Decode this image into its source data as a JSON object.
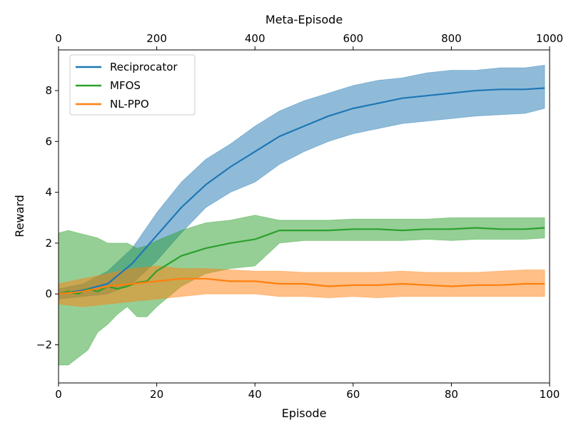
{
  "chart_data": {
    "type": "line",
    "title": "",
    "xlabel": "Episode",
    "ylabel": "Reward",
    "top_xlabel": "Meta-Episode",
    "xlim": [
      0,
      100
    ],
    "ylim": [
      -3.5,
      9.6
    ],
    "top_xlim": [
      0,
      1000
    ],
    "xticks": [
      0,
      20,
      40,
      60,
      80,
      100
    ],
    "xtick_labels": [
      "0",
      "20",
      "40",
      "60",
      "80",
      "100"
    ],
    "yticks": [
      -2,
      0,
      2,
      4,
      6,
      8
    ],
    "ytick_labels": [
      "−2",
      "0",
      "2",
      "4",
      "6",
      "8"
    ],
    "top_xticks": [
      0,
      200,
      400,
      600,
      800,
      1000
    ],
    "top_xtick_labels": [
      "0",
      "200",
      "400",
      "600",
      "800",
      "1000"
    ],
    "legend_position": "upper-left",
    "series": [
      {
        "name": "Reciprocator",
        "color": "#1f77b4",
        "x": [
          0,
          5,
          10,
          15,
          20,
          25,
          30,
          35,
          40,
          45,
          50,
          55,
          60,
          65,
          70,
          75,
          80,
          85,
          90,
          95,
          99
        ],
        "mean": [
          0.0,
          0.15,
          0.4,
          1.2,
          2.3,
          3.4,
          4.3,
          5.0,
          5.6,
          6.2,
          6.6,
          7.0,
          7.3,
          7.5,
          7.7,
          7.8,
          7.9,
          8.0,
          8.05,
          8.05,
          8.1
        ],
        "lower": [
          -0.2,
          -0.1,
          0.0,
          0.4,
          1.3,
          2.4,
          3.4,
          4.0,
          4.4,
          5.1,
          5.6,
          6.0,
          6.3,
          6.5,
          6.7,
          6.8,
          6.9,
          7.0,
          7.05,
          7.1,
          7.3
        ],
        "upper": [
          0.2,
          0.4,
          0.9,
          1.8,
          3.2,
          4.4,
          5.3,
          5.9,
          6.6,
          7.2,
          7.6,
          7.9,
          8.2,
          8.4,
          8.5,
          8.7,
          8.8,
          8.8,
          8.9,
          8.9,
          9.0
        ]
      },
      {
        "name": "MFOS",
        "color": "#2ca02c",
        "x": [
          0,
          2,
          4,
          6,
          8,
          10,
          12,
          14,
          16,
          18,
          20,
          25,
          30,
          35,
          40,
          45,
          50,
          55,
          60,
          65,
          70,
          75,
          80,
          85,
          90,
          95,
          99
        ],
        "mean": [
          0.0,
          0.1,
          0.0,
          0.2,
          0.1,
          0.3,
          0.2,
          0.3,
          0.45,
          0.5,
          0.9,
          1.5,
          1.8,
          2.0,
          2.15,
          2.5,
          2.5,
          2.5,
          2.55,
          2.55,
          2.5,
          2.55,
          2.55,
          2.6,
          2.55,
          2.55,
          2.6
        ],
        "lower": [
          -2.8,
          -2.8,
          -2.5,
          -2.2,
          -1.5,
          -1.2,
          -0.8,
          -0.5,
          -0.9,
          -0.9,
          -0.5,
          0.3,
          0.8,
          1.0,
          1.1,
          2.0,
          2.1,
          2.1,
          2.1,
          2.1,
          2.1,
          2.15,
          2.1,
          2.15,
          2.15,
          2.15,
          2.2
        ],
        "upper": [
          2.4,
          2.5,
          2.4,
          2.3,
          2.2,
          2.0,
          2.0,
          2.0,
          1.8,
          1.9,
          2.1,
          2.5,
          2.8,
          2.9,
          3.1,
          2.9,
          2.9,
          2.9,
          2.95,
          2.95,
          2.95,
          2.95,
          3.0,
          3.0,
          3.0,
          3.0,
          3.0
        ]
      },
      {
        "name": "NL-PPO",
        "color": "#ff7f0e",
        "x": [
          0,
          5,
          10,
          15,
          20,
          25,
          30,
          35,
          40,
          45,
          50,
          55,
          60,
          65,
          70,
          75,
          80,
          85,
          90,
          95,
          99
        ],
        "mean": [
          0.0,
          0.1,
          0.3,
          0.4,
          0.5,
          0.6,
          0.6,
          0.5,
          0.5,
          0.4,
          0.4,
          0.3,
          0.35,
          0.35,
          0.4,
          0.35,
          0.3,
          0.35,
          0.35,
          0.4,
          0.4
        ],
        "lower": [
          -0.4,
          -0.5,
          -0.4,
          -0.3,
          -0.2,
          -0.1,
          0.0,
          0.0,
          0.0,
          -0.1,
          -0.1,
          -0.15,
          -0.1,
          -0.15,
          -0.1,
          -0.1,
          -0.1,
          -0.1,
          -0.1,
          -0.1,
          -0.1
        ],
        "upper": [
          0.4,
          0.6,
          0.8,
          1.0,
          1.1,
          1.0,
          1.0,
          0.95,
          0.9,
          0.9,
          0.85,
          0.85,
          0.85,
          0.85,
          0.9,
          0.85,
          0.85,
          0.85,
          0.9,
          0.95,
          0.95
        ]
      }
    ]
  }
}
